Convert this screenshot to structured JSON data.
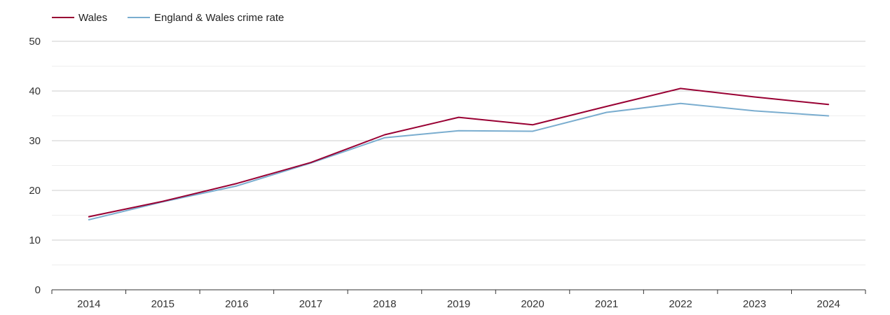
{
  "chart_data": {
    "type": "line",
    "title": "",
    "xlabel": "",
    "ylabel": "",
    "categories": [
      "2014",
      "2015",
      "2016",
      "2017",
      "2018",
      "2019",
      "2020",
      "2021",
      "2022",
      "2023",
      "2024"
    ],
    "ylim": [
      0,
      50
    ],
    "yticks": [
      "0",
      "10",
      "20",
      "30",
      "40",
      "50"
    ],
    "grid": true,
    "legend_position": "top-left",
    "series": [
      {
        "name": "Wales",
        "color": "#990033",
        "values": [
          14.7,
          17.8,
          21.4,
          25.6,
          31.2,
          34.7,
          33.2,
          36.9,
          40.5,
          38.8,
          37.3
        ]
      },
      {
        "name": "England & Wales crime rate",
        "color": "#7aadcf",
        "values": [
          14.1,
          17.7,
          20.9,
          25.5,
          30.6,
          32.0,
          31.9,
          35.7,
          37.5,
          36.0,
          35.0
        ]
      }
    ]
  }
}
